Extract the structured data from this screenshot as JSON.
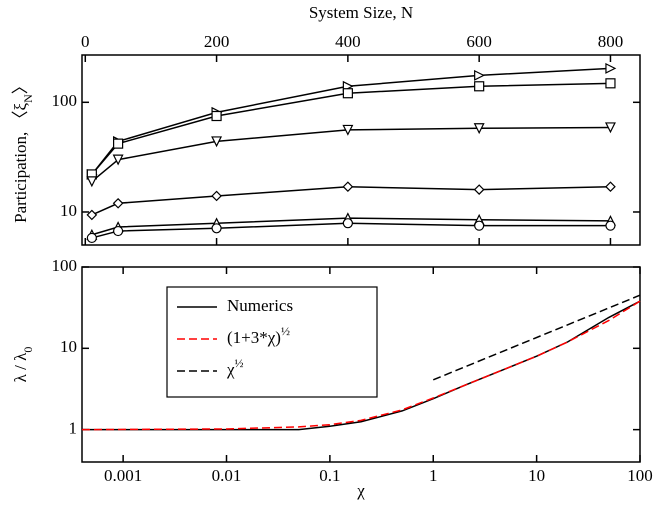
{
  "chart_data": [
    {
      "type": "line",
      "xlabel": "System Size, N",
      "xaxis_position": "top",
      "ylabel": {
        "text": "Participation, 〈ξ",
        "subscript": "N",
        "suffix": "〉"
      },
      "xlim": [
        -5,
        845
      ],
      "xticks": [
        0,
        200,
        400,
        600,
        800
      ],
      "ylim": [
        5,
        270
      ],
      "yticks": [
        10,
        100
      ],
      "ylog": true,
      "series": [
        {
          "marker": "triangle-right",
          "color": "#000000",
          "x": [
            10,
            50,
            200,
            400,
            600,
            800
          ],
          "values": [
            22,
            44,
            81,
            140,
            176,
            204
          ]
        },
        {
          "marker": "square",
          "color": "#000000",
          "x": [
            10,
            50,
            200,
            400,
            600,
            800
          ],
          "values": [
            22,
            42,
            75,
            121,
            140,
            149
          ]
        },
        {
          "marker": "triangle-down",
          "color": "#000000",
          "x": [
            10,
            50,
            200,
            400,
            600,
            800
          ],
          "values": [
            19,
            30,
            44,
            56,
            58,
            59
          ]
        },
        {
          "marker": "diamond",
          "color": "#000000",
          "x": [
            10,
            50,
            200,
            400,
            600,
            800
          ],
          "values": [
            9.4,
            12,
            14,
            17,
            16,
            17
          ]
        },
        {
          "marker": "triangle-up",
          "color": "#000000",
          "x": [
            10,
            50,
            200,
            400,
            600,
            800
          ],
          "values": [
            6.2,
            7.3,
            7.9,
            8.8,
            8.5,
            8.3
          ]
        },
        {
          "marker": "circle",
          "color": "#000000",
          "x": [
            10,
            50,
            200,
            400,
            600,
            800
          ],
          "values": [
            5.8,
            6.7,
            7.1,
            7.9,
            7.5,
            7.5
          ]
        }
      ]
    },
    {
      "type": "line",
      "xlabel": "χ",
      "xaxis_position": "bottom",
      "ylabel": {
        "text": "λ / λ",
        "subscript": "0"
      },
      "xlim": [
        0.0004,
        100
      ],
      "xticks": [
        0.001,
        0.01,
        0.1,
        1,
        10,
        100
      ],
      "xlog": true,
      "ylim": [
        0.4,
        100
      ],
      "yticks": [
        1,
        10,
        100
      ],
      "ylog": true,
      "legend": "upper left",
      "series": [
        {
          "name": "Numerics",
          "color": "#000000",
          "dash": false,
          "x": [
            0.0004,
            0.01,
            0.05,
            0.1,
            0.2,
            0.5,
            1,
            2,
            5,
            10,
            20,
            50,
            100
          ],
          "values": [
            1,
            1,
            1,
            1.1,
            1.25,
            1.7,
            2.4,
            3.5,
            5.6,
            8,
            12,
            24,
            38
          ]
        },
        {
          "name": {
            "text": "(1+3*χ)",
            "superscript": "½"
          },
          "color": "#ff0000",
          "dash": true,
          "x": [
            0.0004,
            0.01,
            0.05,
            0.1,
            0.2,
            0.5,
            1,
            2,
            5,
            10,
            20,
            50,
            100
          ],
          "values": [
            1,
            1.02,
            1.08,
            1.15,
            1.3,
            1.75,
            2.45,
            3.5,
            5.6,
            8,
            12,
            22,
            38
          ]
        },
        {
          "name": {
            "text": "χ",
            "superscript": "½"
          },
          "color": "#000000",
          "dash": true,
          "x": [
            1,
            100
          ],
          "values": [
            4.1,
            45
          ]
        }
      ]
    }
  ]
}
